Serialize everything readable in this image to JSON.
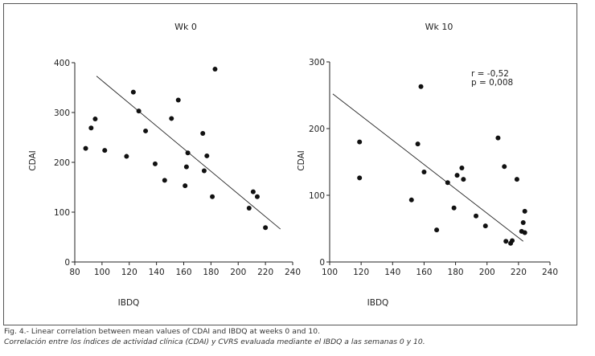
{
  "chart_data": [
    {
      "type": "scatter",
      "title": "Wk 0",
      "xlabel": "IBDQ",
      "ylabel": "CDAI",
      "xlim": [
        80,
        240
      ],
      "ylim": [
        0,
        400
      ],
      "xticks": [
        80,
        100,
        120,
        140,
        160,
        180,
        200,
        220,
        240
      ],
      "yticks": [
        0,
        100,
        200,
        300,
        400
      ],
      "x": [
        88,
        92,
        95,
        102,
        118,
        123,
        127,
        132,
        139,
        146,
        151,
        156,
        161,
        162,
        163,
        174,
        175,
        177,
        181,
        183,
        208,
        211,
        214,
        220
      ],
      "y": [
        228,
        269,
        287,
        224,
        212,
        341,
        303,
        263,
        197,
        164,
        288,
        325,
        153,
        191,
        219,
        258,
        183,
        213,
        131,
        387,
        108,
        141,
        131,
        69
      ],
      "trendline": {
        "x": [
          96,
          231
        ],
        "y": [
          373,
          66
        ]
      },
      "annotation": []
    },
    {
      "type": "scatter",
      "title": "Wk 10",
      "xlabel": "IBDQ",
      "ylabel": "CDAI",
      "xlim": [
        100,
        240
      ],
      "ylim": [
        0,
        300
      ],
      "xticks": [
        100,
        120,
        140,
        160,
        180,
        200,
        220,
        240
      ],
      "yticks": [
        0,
        100,
        200,
        300
      ],
      "x": [
        119,
        119,
        152,
        156,
        158,
        160,
        168,
        175,
        179,
        181,
        184,
        185,
        193,
        199,
        207,
        211,
        212,
        215,
        216,
        219,
        222,
        223,
        224,
        224
      ],
      "y": [
        180,
        126,
        93,
        177,
        263,
        135,
        48,
        119,
        81,
        130,
        141,
        124,
        69,
        54,
        186,
        143,
        31,
        28,
        32,
        124,
        46,
        59,
        44,
        76
      ],
      "trendline": {
        "x": [
          102,
          223
        ],
        "y": [
          252,
          31
        ]
      },
      "annotation": [
        "r = -0,52",
        "p = 0,008"
      ]
    }
  ],
  "caption": {
    "line1": "Fig. 4.- Linear correlation between mean values of CDAI and IBDQ at weeks 0 and 10.",
    "line2": "Correlación entre los índices de actividad clínica (CDAI) y CVRS evaluada mediante el IBDQ a las semanas 0 y 10."
  }
}
